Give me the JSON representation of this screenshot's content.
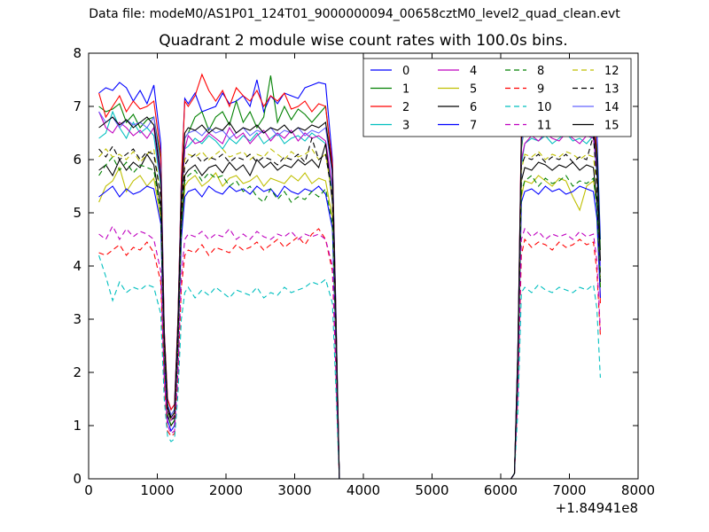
{
  "header": {
    "suptitle": "Data file: modeM0/AS1P01_124T01_9000000094_00658cztM0_level2_quad_clean.evt"
  },
  "chart_data": {
    "type": "line",
    "title": "Quadrant 2 module wise count rates with 100.0s bins.",
    "xlabel": "",
    "ylabel": "",
    "x_offset_label": "+1.84941e8",
    "xlim": [
      0,
      8000
    ],
    "ylim": [
      0,
      8
    ],
    "xticks": [
      "0",
      "1000",
      "2000",
      "3000",
      "4000",
      "5000",
      "6000",
      "7000",
      "8000"
    ],
    "yticks": [
      "0",
      "1",
      "2",
      "3",
      "4",
      "5",
      "6",
      "7",
      "8"
    ],
    "grid": false,
    "legend_position": "top-right",
    "x": [
      150,
      250,
      350,
      450,
      550,
      650,
      750,
      850,
      950,
      1050,
      1100,
      1150,
      1200,
      1250,
      1300,
      1350,
      1400,
      1450,
      1550,
      1650,
      1750,
      1850,
      1950,
      2050,
      2150,
      2250,
      2350,
      2450,
      2550,
      2650,
      2750,
      2850,
      2950,
      3050,
      3150,
      3250,
      3350,
      3450,
      3550,
      3600,
      3650,
      4000,
      5000,
      6000,
      6150,
      6200,
      6250,
      6300,
      6350,
      6450,
      6550,
      6650,
      6750,
      6850,
      6950,
      7050,
      7150,
      7250,
      7350,
      7400,
      7450
    ],
    "series": [
      {
        "name": "0",
        "color": "#0000ff",
        "dash": "solid",
        "values": [
          7.25,
          7.35,
          7.3,
          7.45,
          7.35,
          7.1,
          7.3,
          7.05,
          7.4,
          6.3,
          2.8,
          1.5,
          1.3,
          1.4,
          3.0,
          5.6,
          7.15,
          7.05,
          7.25,
          6.9,
          6.95,
          7.0,
          7.25,
          7.05,
          7.1,
          7.2,
          7.0,
          7.5,
          6.9,
          7.2,
          7.05,
          7.25,
          7.2,
          7.15,
          7.35,
          7.4,
          7.45,
          7.42,
          6.0,
          3.2,
          0,
          0,
          0,
          0,
          0,
          0.1,
          2.5,
          6.5,
          7.0,
          7.2,
          7.0,
          7.1,
          7.25,
          7.0,
          7.1,
          7.15,
          7.0,
          7.1,
          7.05,
          6.5,
          4.5
        ]
      },
      {
        "name": "1",
        "color": "#008000",
        "dash": "solid",
        "values": [
          7.0,
          6.9,
          6.95,
          7.05,
          6.7,
          6.85,
          6.6,
          6.75,
          6.8,
          6.0,
          2.7,
          1.4,
          1.2,
          1.3,
          2.9,
          5.5,
          6.4,
          6.5,
          6.8,
          6.9,
          6.55,
          6.8,
          6.9,
          6.65,
          7.1,
          6.7,
          6.9,
          6.6,
          6.8,
          7.58,
          6.7,
          7.0,
          6.75,
          6.95,
          6.85,
          6.7,
          6.85,
          7.0,
          5.8,
          3.0,
          0,
          0,
          0,
          0,
          0,
          0.1,
          2.4,
          6.2,
          6.7,
          6.6,
          6.85,
          6.7,
          6.9,
          6.75,
          6.8,
          6.6,
          6.85,
          6.7,
          6.8,
          6.2,
          4.3
        ]
      },
      {
        "name": "2",
        "color": "#ff0000",
        "dash": "solid",
        "values": [
          7.25,
          6.8,
          7.0,
          7.2,
          6.9,
          7.1,
          6.95,
          7.0,
          7.1,
          6.1,
          2.8,
          1.5,
          1.3,
          1.4,
          3.0,
          5.6,
          7.1,
          7.0,
          7.2,
          7.6,
          7.3,
          7.1,
          7.3,
          7.0,
          7.35,
          7.2,
          7.1,
          7.3,
          7.0,
          7.2,
          7.1,
          7.25,
          6.95,
          7.0,
          7.1,
          6.9,
          7.05,
          7.0,
          5.9,
          3.1,
          0,
          0,
          0,
          0,
          0,
          0.1,
          2.4,
          6.6,
          6.9,
          6.95,
          7.1,
          7.15,
          7.0,
          7.1,
          6.95,
          7.1,
          7.0,
          6.9,
          7.05,
          6.0,
          3.3
        ]
      },
      {
        "name": "3",
        "color": "#00bfbf",
        "dash": "solid",
        "values": [
          6.4,
          6.5,
          6.9,
          6.6,
          6.4,
          6.7,
          6.5,
          6.6,
          6.45,
          5.5,
          2.5,
          1.3,
          1.1,
          1.2,
          2.7,
          5.1,
          6.2,
          6.25,
          6.4,
          6.3,
          6.45,
          6.35,
          6.2,
          6.4,
          6.3,
          6.45,
          6.35,
          6.5,
          6.3,
          6.4,
          6.5,
          6.3,
          6.4,
          6.45,
          6.35,
          6.5,
          6.4,
          6.3,
          5.4,
          2.8,
          0,
          0,
          0,
          0,
          0,
          0.1,
          2.2,
          5.9,
          6.3,
          6.4,
          6.35,
          6.45,
          6.3,
          6.4,
          6.5,
          6.35,
          6.4,
          6.3,
          6.45,
          5.7,
          3.9
        ]
      },
      {
        "name": "4",
        "color": "#bf00bf",
        "dash": "solid",
        "values": [
          6.9,
          6.6,
          6.5,
          6.7,
          6.6,
          6.45,
          6.55,
          6.4,
          6.6,
          5.6,
          2.6,
          1.3,
          1.1,
          1.2,
          2.7,
          5.2,
          6.2,
          6.45,
          6.3,
          6.35,
          6.5,
          6.4,
          6.3,
          6.6,
          6.4,
          6.5,
          6.3,
          6.45,
          6.55,
          6.35,
          6.5,
          6.4,
          6.55,
          6.35,
          6.5,
          6.4,
          6.45,
          6.35,
          5.5,
          2.9,
          0,
          0,
          0,
          0,
          0,
          0.1,
          2.2,
          6.0,
          6.3,
          6.45,
          6.35,
          6.5,
          6.4,
          6.35,
          6.5,
          6.4,
          6.3,
          6.45,
          6.4,
          5.8,
          4.0
        ]
      },
      {
        "name": "5",
        "color": "#bfbf00",
        "dash": "solid",
        "values": [
          5.2,
          5.5,
          5.6,
          5.85,
          5.4,
          5.6,
          5.7,
          5.5,
          5.65,
          4.9,
          2.3,
          1.2,
          1.0,
          1.1,
          2.5,
          4.6,
          5.5,
          5.6,
          5.7,
          5.5,
          5.6,
          5.75,
          5.5,
          5.65,
          5.7,
          5.55,
          5.6,
          5.7,
          5.5,
          5.65,
          5.6,
          5.55,
          5.7,
          5.6,
          5.75,
          5.55,
          5.65,
          5.6,
          4.9,
          2.6,
          0,
          0,
          0,
          0,
          0,
          0.1,
          2.0,
          5.3,
          5.6,
          5.55,
          5.7,
          5.6,
          5.5,
          5.65,
          5.6,
          5.3,
          5.05,
          5.5,
          5.6,
          5.2,
          3.6
        ]
      },
      {
        "name": "6",
        "color": "#000000",
        "dash": "solid",
        "values": [
          5.8,
          5.9,
          5.7,
          6.0,
          5.8,
          5.95,
          5.85,
          6.1,
          5.9,
          5.1,
          2.4,
          1.2,
          1.0,
          1.1,
          2.6,
          4.8,
          5.7,
          5.8,
          5.9,
          5.7,
          5.85,
          5.9,
          5.75,
          5.95,
          5.8,
          5.9,
          5.7,
          6.0,
          5.85,
          5.95,
          5.8,
          5.9,
          5.85,
          6.0,
          5.9,
          6.0,
          5.85,
          6.3,
          5.2,
          2.7,
          0,
          0,
          0,
          0,
          0,
          0.1,
          2.1,
          5.6,
          5.85,
          5.8,
          5.95,
          5.9,
          5.8,
          5.9,
          5.85,
          5.95,
          5.8,
          5.9,
          5.85,
          5.2,
          3.7
        ]
      },
      {
        "name": "7",
        "color": "#0000ff",
        "dash": "solid",
        "values": [
          5.3,
          5.4,
          5.5,
          5.3,
          5.45,
          5.35,
          5.4,
          5.5,
          5.45,
          4.8,
          2.2,
          1.1,
          0.9,
          1.0,
          2.4,
          4.5,
          5.3,
          5.4,
          5.45,
          5.3,
          5.5,
          5.4,
          5.35,
          5.5,
          5.4,
          5.45,
          5.35,
          5.5,
          5.4,
          5.45,
          5.3,
          5.5,
          5.4,
          5.35,
          5.45,
          5.4,
          5.5,
          5.35,
          4.7,
          2.5,
          0,
          0,
          0,
          0,
          0,
          0.1,
          1.9,
          5.2,
          5.4,
          5.45,
          5.35,
          5.5,
          5.4,
          5.45,
          5.35,
          5.4,
          5.5,
          5.45,
          5.4,
          4.9,
          3.4
        ]
      },
      {
        "name": "8",
        "color": "#008000",
        "dash": "dashed",
        "values": [
          5.7,
          5.9,
          6.05,
          5.8,
          5.95,
          5.75,
          5.9,
          5.85,
          5.8,
          5.0,
          2.3,
          1.2,
          1.0,
          1.1,
          2.5,
          4.7,
          5.6,
          5.7,
          5.8,
          5.6,
          5.75,
          5.65,
          5.7,
          5.5,
          5.6,
          5.4,
          5.5,
          5.3,
          5.2,
          5.45,
          5.25,
          5.4,
          5.2,
          5.3,
          5.25,
          5.4,
          5.3,
          5.45,
          4.8,
          2.6,
          0,
          0,
          0,
          0,
          0,
          0.1,
          2.0,
          5.4,
          5.6,
          5.7,
          5.5,
          5.65,
          5.55,
          5.6,
          5.7,
          5.5,
          5.6,
          5.55,
          5.65,
          5.1,
          3.6
        ]
      },
      {
        "name": "9",
        "color": "#ff0000",
        "dash": "dashed",
        "values": [
          4.25,
          4.2,
          4.3,
          4.4,
          4.2,
          4.35,
          4.3,
          4.45,
          4.25,
          3.7,
          1.8,
          0.9,
          0.8,
          0.85,
          1.9,
          3.6,
          4.2,
          4.3,
          4.25,
          4.4,
          4.2,
          4.35,
          4.3,
          4.25,
          4.4,
          4.3,
          4.35,
          4.45,
          4.3,
          4.4,
          4.5,
          4.35,
          4.45,
          4.55,
          4.4,
          4.6,
          4.7,
          4.5,
          3.9,
          2.0,
          0,
          0,
          0,
          0,
          0,
          0.1,
          1.6,
          4.2,
          4.5,
          4.35,
          4.45,
          4.4,
          4.3,
          4.45,
          4.35,
          4.4,
          4.5,
          4.4,
          4.45,
          3.9,
          2.7
        ]
      },
      {
        "name": "10",
        "color": "#00bfbf",
        "dash": "dashed",
        "values": [
          4.2,
          3.8,
          3.35,
          3.7,
          3.5,
          3.6,
          3.55,
          3.65,
          3.6,
          3.1,
          1.5,
          0.8,
          0.7,
          0.75,
          1.6,
          3.0,
          3.5,
          3.6,
          3.4,
          3.55,
          3.45,
          3.6,
          3.5,
          3.4,
          3.55,
          3.5,
          3.45,
          3.6,
          3.4,
          3.5,
          3.45,
          3.6,
          3.5,
          3.55,
          3.6,
          3.7,
          3.65,
          3.75,
          3.3,
          1.7,
          0,
          0,
          0,
          0,
          0,
          0.1,
          1.3,
          3.5,
          3.6,
          3.5,
          3.65,
          3.55,
          3.5,
          3.6,
          3.55,
          3.5,
          3.6,
          3.55,
          3.65,
          3.2,
          1.9
        ]
      },
      {
        "name": "11",
        "color": "#bf00bf",
        "dash": "dashed",
        "values": [
          4.6,
          4.5,
          4.75,
          4.5,
          4.7,
          4.55,
          4.65,
          4.6,
          4.5,
          3.9,
          1.9,
          1.0,
          0.85,
          0.9,
          2.0,
          3.8,
          4.5,
          4.6,
          4.55,
          4.65,
          4.5,
          4.6,
          4.55,
          4.7,
          4.5,
          4.6,
          4.5,
          4.65,
          4.55,
          4.5,
          4.6,
          4.55,
          4.65,
          4.5,
          4.6,
          4.55,
          4.6,
          4.5,
          4.0,
          2.1,
          0,
          0,
          0,
          0,
          0,
          0.1,
          1.7,
          4.5,
          4.7,
          4.55,
          4.65,
          4.5,
          4.6,
          4.55,
          4.6,
          4.5,
          4.65,
          4.55,
          4.6,
          4.1,
          2.8
        ]
      },
      {
        "name": "12",
        "color": "#bfbf00",
        "dash": "dashed",
        "values": [
          6.05,
          6.2,
          6.05,
          6.1,
          6.0,
          6.15,
          5.95,
          6.1,
          6.2,
          5.3,
          2.5,
          1.3,
          1.1,
          1.15,
          2.6,
          5.0,
          6.0,
          6.1,
          6.05,
          6.15,
          6.0,
          6.1,
          6.2,
          6.05,
          6.1,
          6.15,
          6.0,
          6.1,
          6.05,
          6.2,
          6.1,
          6.0,
          6.15,
          6.05,
          6.1,
          6.2,
          6.0,
          6.1,
          5.3,
          2.8,
          0,
          0,
          0,
          0,
          0,
          0.1,
          2.2,
          5.8,
          6.1,
          6.05,
          6.15,
          6.0,
          6.1,
          6.05,
          6.15,
          6.1,
          6.0,
          6.1,
          6.05,
          5.5,
          3.8
        ]
      },
      {
        "name": "13",
        "color": "#000000",
        "dash": "dashed",
        "values": [
          6.2,
          6.05,
          6.25,
          6.0,
          6.1,
          6.2,
          6.0,
          6.15,
          6.1,
          5.3,
          2.5,
          1.3,
          1.1,
          1.15,
          2.6,
          5.0,
          5.9,
          6.0,
          6.1,
          5.95,
          6.05,
          6.0,
          6.1,
          5.95,
          6.05,
          6.0,
          6.1,
          5.95,
          6.05,
          6.0,
          5.9,
          6.05,
          6.0,
          6.1,
          5.95,
          6.4,
          6.0,
          6.1,
          5.3,
          2.8,
          0,
          0,
          0,
          0,
          0,
          0.1,
          2.2,
          5.9,
          6.05,
          6.0,
          6.1,
          5.95,
          6.05,
          6.0,
          6.1,
          5.95,
          6.05,
          6.0,
          6.45,
          5.5,
          3.8
        ]
      },
      {
        "name": "14",
        "color": "#6464ff",
        "dash": "solid",
        "values": [
          6.9,
          6.7,
          6.8,
          6.6,
          6.75,
          6.65,
          6.7,
          6.6,
          6.8,
          5.8,
          2.7,
          1.4,
          1.2,
          1.3,
          2.9,
          5.4,
          6.4,
          6.5,
          6.55,
          6.45,
          6.6,
          6.5,
          6.55,
          6.4,
          6.5,
          6.6,
          6.45,
          6.55,
          6.5,
          6.6,
          6.45,
          6.55,
          6.5,
          6.6,
          6.45,
          6.55,
          6.5,
          6.6,
          5.7,
          3.0,
          0,
          0,
          0,
          0,
          0,
          0.1,
          2.4,
          6.3,
          6.6,
          6.9,
          7.1,
          7.3,
          7.58,
          6.8,
          6.6,
          6.5,
          6.6,
          6.5,
          6.6,
          5.9,
          4.0
        ]
      },
      {
        "name": "15",
        "color": "#000000",
        "dash": "solid",
        "values": [
          6.6,
          6.7,
          6.8,
          6.65,
          6.75,
          6.6,
          6.7,
          6.8,
          6.65,
          5.7,
          2.7,
          1.35,
          1.15,
          1.25,
          2.9,
          5.3,
          6.5,
          6.6,
          6.55,
          6.65,
          6.5,
          6.6,
          6.55,
          6.7,
          6.5,
          6.6,
          6.55,
          6.65,
          6.5,
          6.6,
          6.55,
          6.65,
          6.5,
          6.6,
          6.55,
          6.65,
          6.6,
          6.7,
          5.8,
          3.0,
          0,
          0,
          0,
          0,
          0,
          0.1,
          2.4,
          6.4,
          6.6,
          6.5,
          6.65,
          6.55,
          6.6,
          6.7,
          6.5,
          6.6,
          6.55,
          6.65,
          6.6,
          6.0,
          4.1
        ]
      }
    ]
  }
}
